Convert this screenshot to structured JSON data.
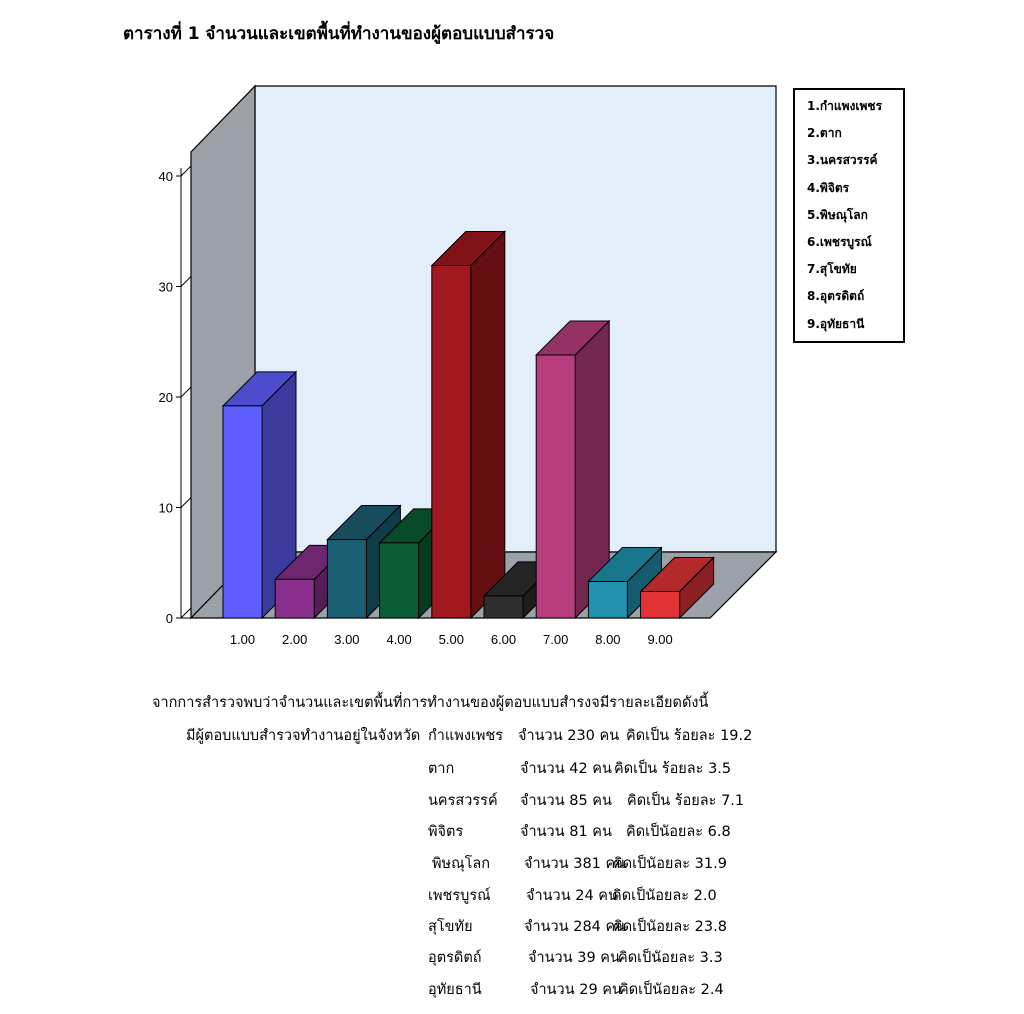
{
  "title": "ตารางที่ 1 จำนวนและเขตพื้นที่ทำงานของผู้ตอบแบบสำรวจ",
  "chart_data": {
    "type": "bar",
    "categories": [
      "1.00",
      "2.00",
      "3.00",
      "4.00",
      "5.00",
      "6.00",
      "7.00",
      "8.00",
      "9.00"
    ],
    "values": [
      19.2,
      3.5,
      7.1,
      6.8,
      31.9,
      2.0,
      23.8,
      3.3,
      2.4
    ],
    "colors": [
      "#5f5fff",
      "#8a2f8c",
      "#1b5f73",
      "#0b5e33",
      "#a3181e",
      "#2e2e2e",
      "#b93d7e",
      "#2193b0",
      "#e23236"
    ],
    "ylim": [
      0,
      40
    ],
    "yticks": [
      0,
      10,
      20,
      30,
      40
    ],
    "legend": [
      "1.กำแพงเพชร",
      "2.ตาก",
      "3.นครสวรรค์",
      "4.พิจิตร",
      "5.พิษณุโลก",
      "6.เพชรบูรณ์",
      "7.สุโขทัย",
      "8.อุตรดิตถ์",
      "9.อุทัยธานี"
    ],
    "legend_placement": "right",
    "grid": false
  },
  "summary": {
    "intro": "จากการสำรวจพบว่าจำนวนและเขตพื้นที่การทำงานของผู้ตอบแบบสำรงจมีรายละเอียดดังนี้",
    "lead": "มีผู้ตอบแบบสำรวจทำงานอยู่ในจังหวัด",
    "rows": [
      {
        "province": "กำแพงเพชร",
        "count": "จำนวน 230 คน",
        "pct": "คิดเป็น ร้อยละ 19.2"
      },
      {
        "province": "ตาก",
        "count": "จำนวน  42 คน",
        "pct": "คิดเป็น ร้อยละ   3.5"
      },
      {
        "province": "นครสวรรค์",
        "count": "จำนวน    85 คน",
        "pct": "คิดเป็น ร้อยละ  7.1"
      },
      {
        "province": "พิจิตร",
        "count": "จำนวน   81 คน",
        "pct": "คิดเป็นัอยละ 6.8"
      },
      {
        "province": "พิษณุโลก",
        "count": "จำนวน  381  คน",
        "pct": "คิดเป็นัอยละ 31.9"
      },
      {
        "province": "เพชรบูรณ์",
        "count": "จำนวน   24 คน",
        "pct": "คิดเป็นัอยละ 2.0"
      },
      {
        "province": "สุโขทัย",
        "count": "จำนวน   284 คน",
        "pct": "คิดเป็นัอยละ 23.8"
      },
      {
        "province": "อุตรดิตถ์",
        "count": "จำนวน   39 คน",
        "pct": "คิดเป็นัอยละ 3.3"
      },
      {
        "province": "อุทัยธานี",
        "count": "จำนวน    29 คน",
        "pct": "คิดเป็นัอยละ 2.4"
      }
    ]
  }
}
